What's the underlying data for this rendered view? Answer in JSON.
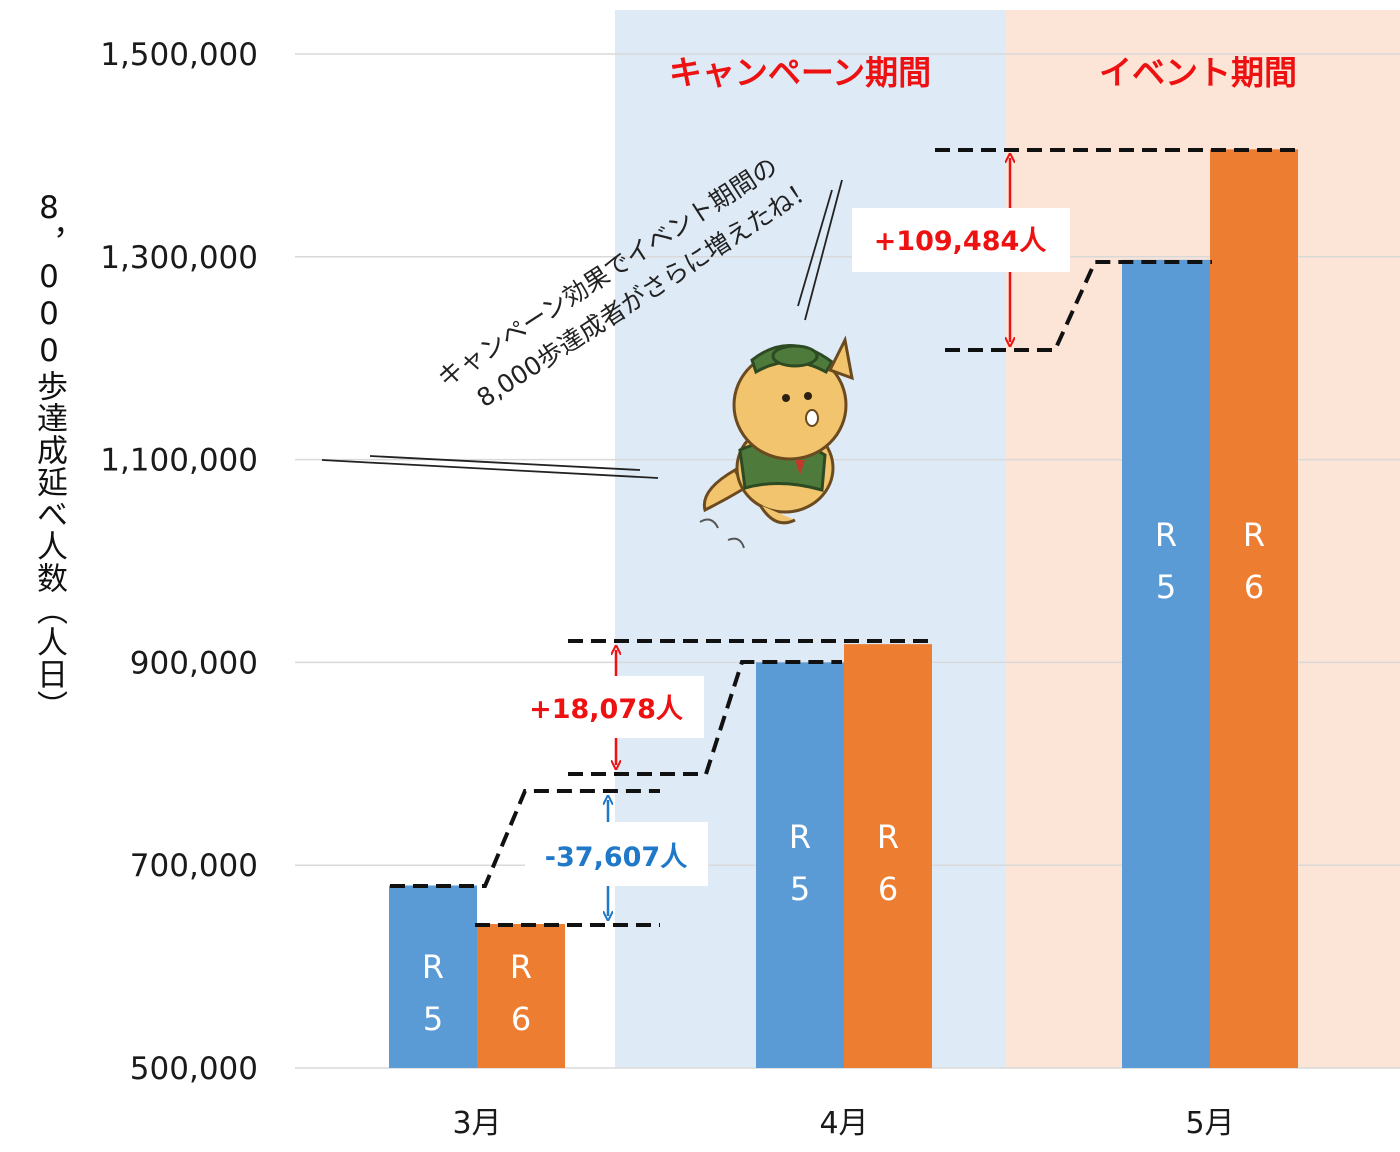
{
  "chart_data": {
    "type": "bar",
    "categories": [
      "3月",
      "4月",
      "5月"
    ],
    "series": [
      {
        "name": "R5",
        "bar_label": [
          "R",
          "5"
        ],
        "color": "#5b9bd5",
        "values": [
          680000,
          900000,
          1297000
        ]
      },
      {
        "name": "R6",
        "bar_label": [
          "R",
          "6"
        ],
        "color": "#ed7d31",
        "values": [
          642000,
          918000,
          1406000
        ]
      }
    ],
    "ylabel": "8，000歩達成延べ人数（人日）",
    "ylim": [
      500000,
      1500000
    ],
    "yticks": [
      500000,
      700000,
      900000,
      1100000,
      1300000,
      1500000
    ],
    "ytick_labels": [
      "500,000",
      "700,000",
      "900,000",
      "1,100,000",
      "1,300,000",
      "1,500,000"
    ],
    "grid": true,
    "regions": [
      {
        "label": "キャンペーン期間",
        "color": "#deebf7",
        "from": "4月",
        "to": "4月"
      },
      {
        "label": "イベント期間",
        "color": "#fce4d6",
        "from": "5月",
        "to": "5月"
      }
    ],
    "annotations": [
      {
        "text": "-37,607人",
        "color": "#1f78c8"
      },
      {
        "text": "+18,078人",
        "color": "#ee1111"
      },
      {
        "text": "+109,484人",
        "color": "#ee1111"
      }
    ],
    "speech": [
      "キャンペーン効果でイベント期間の",
      "8,000歩達成者がさらに増えたね！"
    ]
  }
}
